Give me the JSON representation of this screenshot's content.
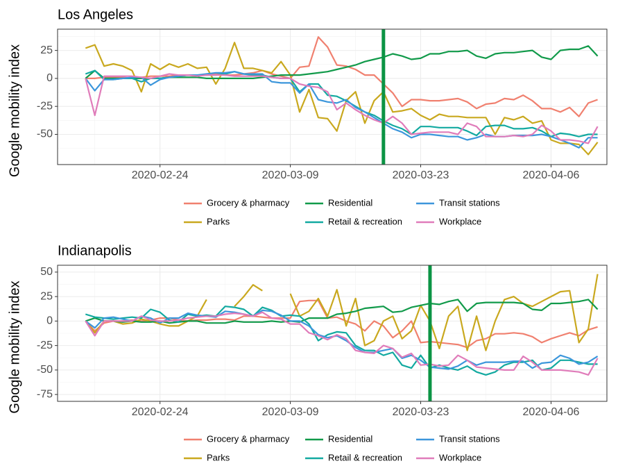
{
  "chart_data": [
    {
      "type": "line",
      "title": "Los Angeles",
      "y_label": "Google mobility index",
      "legend": "bottom",
      "grid": true,
      "x": [
        "2020-02-16",
        "2020-02-17",
        "2020-02-18",
        "2020-02-19",
        "2020-02-20",
        "2020-02-21",
        "2020-02-22",
        "2020-02-23",
        "2020-02-24",
        "2020-02-25",
        "2020-02-26",
        "2020-02-27",
        "2020-02-28",
        "2020-02-29",
        "2020-03-01",
        "2020-03-02",
        "2020-03-03",
        "2020-03-04",
        "2020-03-05",
        "2020-03-06",
        "2020-03-07",
        "2020-03-08",
        "2020-03-09",
        "2020-03-10",
        "2020-03-11",
        "2020-03-12",
        "2020-03-13",
        "2020-03-14",
        "2020-03-15",
        "2020-03-16",
        "2020-03-17",
        "2020-03-18",
        "2020-03-19",
        "2020-03-20",
        "2020-03-21",
        "2020-03-22",
        "2020-03-23",
        "2020-03-24",
        "2020-03-25",
        "2020-03-26",
        "2020-03-27",
        "2020-03-28",
        "2020-03-29",
        "2020-03-30",
        "2020-03-31",
        "2020-04-01",
        "2020-04-02",
        "2020-04-03",
        "2020-04-04",
        "2020-04-05",
        "2020-04-06",
        "2020-04-07",
        "2020-04-08",
        "2020-04-09",
        "2020-04-10",
        "2020-04-11"
      ],
      "xlim": [
        "2020-02-13",
        "2020-04-12"
      ],
      "xticks": [
        "2020-02-24",
        "2020-03-09",
        "2020-03-23",
        "2020-04-06"
      ],
      "ylim": [
        -77,
        44
      ],
      "yticks": [
        -50,
        -25,
        0,
        25
      ],
      "vline": "2020-03-19",
      "vline_color": "#0b9444",
      "series": [
        {
          "name": "Grocery & pharmacy",
          "color": "#f0806f",
          "values": [
            0,
            0,
            1,
            1,
            1,
            0,
            1,
            2,
            2,
            2,
            3,
            3,
            3,
            3,
            4,
            3,
            3,
            4,
            5,
            7,
            4,
            2,
            0,
            10,
            11,
            37,
            28,
            12,
            11,
            8,
            3,
            3,
            -5,
            -13,
            -25,
            -19,
            -19,
            -20,
            -20,
            -19,
            -18,
            -21,
            -27,
            -23,
            -22,
            -18,
            -19,
            -15,
            -20,
            -27,
            -27,
            -30,
            -26,
            -34,
            -22,
            -19
          ]
        },
        {
          "name": "Parks",
          "color": "#c9a81e",
          "values": [
            27,
            30,
            11,
            13,
            11,
            7,
            -12,
            13,
            8,
            13,
            10,
            13,
            9,
            10,
            -5,
            9,
            32,
            9,
            9,
            7,
            5,
            15,
            3,
            -30,
            -10,
            -35,
            -36,
            -47,
            -20,
            -12,
            -40,
            -20,
            -12,
            -30,
            -29,
            -27,
            -33,
            -37,
            -32,
            -34,
            -34,
            -35,
            -35,
            -35,
            -50,
            -35,
            -37,
            -34,
            -40,
            -38,
            -55,
            -58,
            -58,
            -59,
            -68,
            -57
          ]
        },
        {
          "name": "Residential",
          "color": "#119a4a",
          "values": [
            0,
            7,
            0,
            0,
            0,
            0,
            0,
            0,
            0,
            1,
            1,
            1,
            1,
            0,
            0,
            0,
            0,
            0,
            0,
            1,
            2,
            3,
            3,
            3,
            4,
            5,
            6,
            8,
            10,
            12,
            15,
            17,
            19,
            22,
            20,
            17,
            18,
            22,
            22,
            24,
            24,
            25,
            20,
            18,
            22,
            23,
            23,
            24,
            25,
            19,
            17,
            25,
            26,
            26,
            29,
            20
          ]
        },
        {
          "name": "Retail & recreation",
          "color": "#12a9a0",
          "values": [
            4,
            7,
            -1,
            -1,
            0,
            0,
            -3,
            0,
            0,
            1,
            2,
            3,
            3,
            3,
            3,
            4,
            6,
            4,
            3,
            3,
            1,
            0,
            0,
            -12,
            -5,
            -5,
            -15,
            -16,
            -20,
            -25,
            -30,
            -33,
            -38,
            -42,
            -45,
            -50,
            -43,
            -43,
            -44,
            -44,
            -44,
            -47,
            -51,
            -43,
            -42,
            -42,
            -45,
            -45,
            -44,
            -47,
            -52,
            -49,
            -50,
            -52,
            -50,
            -50
          ]
        },
        {
          "name": "Transit stations",
          "color": "#3c96db",
          "values": [
            0,
            -11,
            -1,
            -1,
            0,
            1,
            1,
            -6,
            -1,
            1,
            2,
            3,
            3,
            4,
            5,
            5,
            6,
            4,
            4,
            4,
            -3,
            -4,
            -4,
            -13,
            -5,
            -19,
            -21,
            -22,
            -19,
            -26,
            -30,
            -35,
            -40,
            -45,
            -48,
            -53,
            -50,
            -50,
            -51,
            -52,
            -52,
            -55,
            -53,
            -50,
            -52,
            -52,
            -51,
            -51,
            -51,
            -50,
            -52,
            -55,
            -58,
            -62,
            -53,
            -53
          ]
        },
        {
          "name": "Workplace",
          "color": "#e07cba",
          "values": [
            0,
            -33,
            2,
            2,
            2,
            2,
            1,
            0,
            2,
            4,
            3,
            3,
            2,
            3,
            3,
            3,
            2,
            2,
            2,
            2,
            1,
            0,
            0,
            -5,
            -7,
            -8,
            -12,
            -28,
            -22,
            -28,
            -33,
            -37,
            -40,
            -34,
            -40,
            -50,
            -49,
            -48,
            -48,
            -48,
            -50,
            -40,
            -43,
            -52,
            -52,
            -52,
            -51,
            -52,
            -50,
            -42,
            -47,
            -55,
            -55,
            -56,
            -58,
            -43
          ]
        }
      ]
    },
    {
      "type": "line",
      "title": "Indianapolis",
      "y_label": "Google mobility index",
      "legend": "bottom",
      "grid": true,
      "x": [
        "2020-02-16",
        "2020-02-17",
        "2020-02-18",
        "2020-02-19",
        "2020-02-20",
        "2020-02-21",
        "2020-02-22",
        "2020-02-23",
        "2020-02-24",
        "2020-02-25",
        "2020-02-26",
        "2020-02-27",
        "2020-02-28",
        "2020-02-29",
        "2020-03-01",
        "2020-03-02",
        "2020-03-03",
        "2020-03-04",
        "2020-03-05",
        "2020-03-06",
        "2020-03-07",
        "2020-03-08",
        "2020-03-09",
        "2020-03-10",
        "2020-03-11",
        "2020-03-12",
        "2020-03-13",
        "2020-03-14",
        "2020-03-15",
        "2020-03-16",
        "2020-03-17",
        "2020-03-18",
        "2020-03-19",
        "2020-03-20",
        "2020-03-21",
        "2020-03-22",
        "2020-03-23",
        "2020-03-24",
        "2020-03-25",
        "2020-03-26",
        "2020-03-27",
        "2020-03-28",
        "2020-03-29",
        "2020-03-30",
        "2020-03-31",
        "2020-04-01",
        "2020-04-02",
        "2020-04-03",
        "2020-04-04",
        "2020-04-05",
        "2020-04-06",
        "2020-04-07",
        "2020-04-08",
        "2020-04-09",
        "2020-04-10",
        "2020-04-11"
      ],
      "xlim": [
        "2020-02-13",
        "2020-04-12"
      ],
      "xticks": [
        "2020-02-24",
        "2020-03-09",
        "2020-03-23",
        "2020-04-06"
      ],
      "ylim": [
        -82,
        57
      ],
      "yticks": [
        -75,
        -50,
        -25,
        0,
        25,
        50
      ],
      "vline": "2020-03-24",
      "vline_color": "#0b9444",
      "series": [
        {
          "name": "Grocery & pharmacy",
          "color": "#f0806f",
          "values": [
            0,
            -10,
            -2,
            0,
            0,
            1,
            0,
            1,
            3,
            3,
            1,
            0,
            1,
            1,
            2,
            2,
            1,
            5,
            5,
            4,
            3,
            3,
            3,
            20,
            21,
            21,
            3,
            4,
            0,
            -3,
            -10,
            0,
            -5,
            -17,
            -10,
            0,
            -22,
            -21,
            -22,
            -23,
            -24,
            -27,
            -20,
            -18,
            -13,
            -13,
            -12,
            -13,
            -16,
            -22,
            -18,
            -15,
            -12,
            -15,
            -9,
            -6
          ]
        },
        {
          "name": "Parks",
          "color": "#c9a81e",
          "values": [
            0,
            -12,
            0,
            0,
            -3,
            -2,
            2,
            0,
            -3,
            -5,
            -5,
            0,
            5,
            22,
            null,
            null,
            15,
            25,
            37,
            31,
            null,
            null,
            28,
            5,
            10,
            23,
            5,
            32,
            -5,
            23,
            -25,
            -20,
            0,
            5,
            -18,
            -10,
            16,
            0,
            -28,
            5,
            15,
            -30,
            5,
            -30,
            0,
            22,
            25,
            18,
            15,
            20,
            25,
            30,
            31,
            -22,
            -8,
            48
          ]
        },
        {
          "name": "Residential",
          "color": "#119a4a",
          "values": [
            0,
            3,
            0,
            0,
            -1,
            0,
            -1,
            -1,
            0,
            -2,
            -1,
            0,
            0,
            -2,
            -2,
            -2,
            0,
            -1,
            -1,
            -1,
            0,
            -1,
            0,
            -1,
            3,
            3,
            3,
            7,
            8,
            10,
            13,
            14,
            15,
            9,
            10,
            14,
            16,
            18,
            17,
            20,
            22,
            10,
            18,
            19,
            19,
            19,
            19,
            18,
            12,
            11,
            18,
            18,
            19,
            20,
            22,
            12
          ]
        },
        {
          "name": "Retail & recreation",
          "color": "#12a9a0",
          "values": [
            7,
            4,
            3,
            2,
            3,
            4,
            3,
            12,
            9,
            1,
            -1,
            7,
            5,
            6,
            5,
            15,
            14,
            12,
            5,
            14,
            11,
            5,
            6,
            5,
            -3,
            -20,
            -14,
            -11,
            -12,
            -25,
            -30,
            -30,
            -35,
            -32,
            -45,
            -48,
            -35,
            -48,
            -45,
            -48,
            -50,
            -46,
            -52,
            -55,
            -52,
            -45,
            -42,
            -42,
            -40,
            -50,
            -48,
            -40,
            -40,
            -42,
            -44,
            -44
          ]
        },
        {
          "name": "Transit stations",
          "color": "#3c96db",
          "values": [
            0,
            -7,
            3,
            4,
            2,
            0,
            5,
            3,
            -2,
            3,
            3,
            8,
            6,
            5,
            4,
            10,
            9,
            7,
            5,
            11,
            10,
            6,
            0,
            0,
            -5,
            -14,
            -17,
            -15,
            -20,
            -27,
            -32,
            -32,
            -30,
            -28,
            -38,
            -35,
            -40,
            -47,
            -48,
            -49,
            -46,
            -40,
            -45,
            -42,
            -42,
            -42,
            -41,
            -41,
            -48,
            -43,
            -42,
            -35,
            -38,
            -44,
            -42,
            -36
          ]
        },
        {
          "name": "Workplace",
          "color": "#e07cba",
          "values": [
            0,
            -15,
            0,
            0,
            0,
            0,
            5,
            1,
            0,
            0,
            1,
            3,
            4,
            5,
            5,
            7,
            8,
            7,
            5,
            9,
            3,
            2,
            -3,
            -3,
            -12,
            -15,
            -19,
            -14,
            -18,
            -30,
            -32,
            -33,
            -25,
            -28,
            -37,
            -33,
            -45,
            -44,
            -46,
            -45,
            -35,
            -40,
            -47,
            -48,
            -49,
            -50,
            -50,
            -36,
            -42,
            -50,
            -50,
            -50,
            -51,
            -52,
            -55,
            -38
          ]
        }
      ]
    }
  ]
}
